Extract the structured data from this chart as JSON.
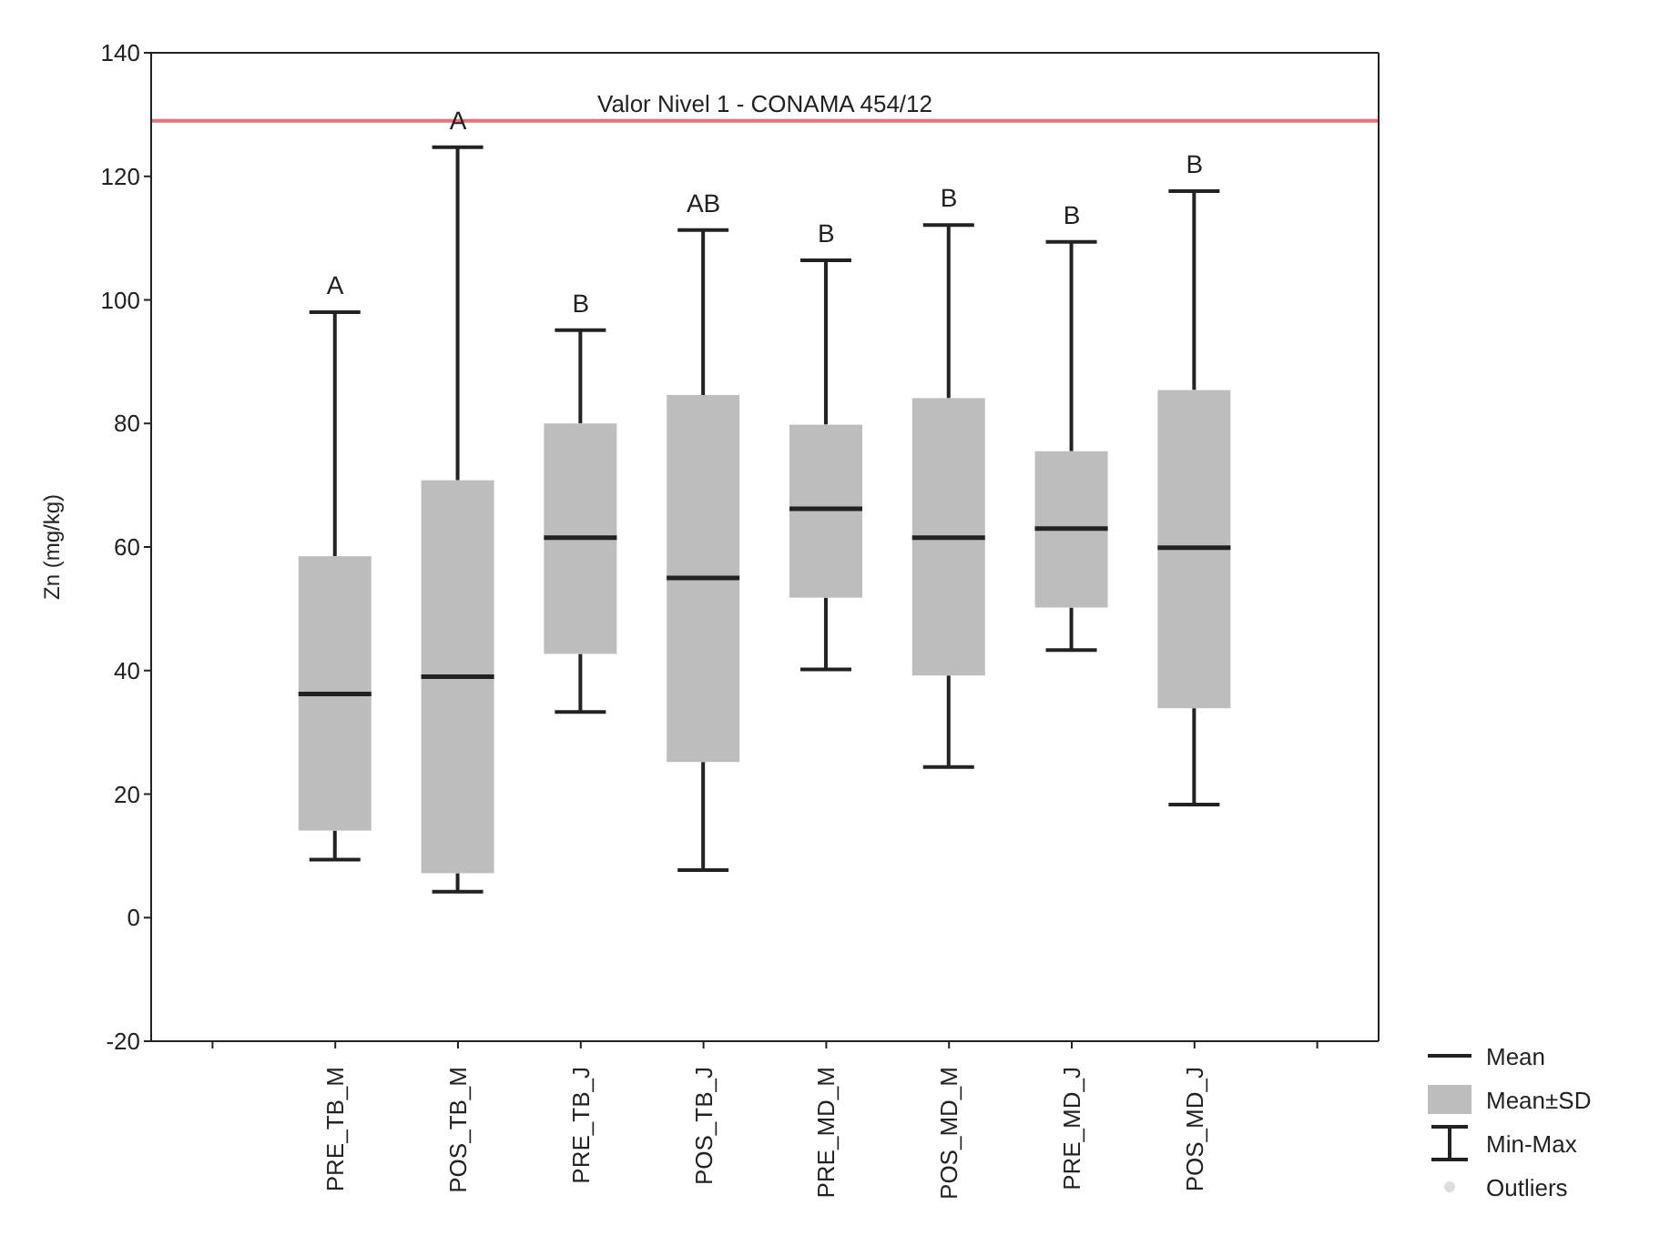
{
  "chart_data": {
    "type": "box",
    "ylabel": "Zn (mg/kg)",
    "categories": [
      null,
      "PRE_TB_M",
      "POS_TB_M",
      "PRE_TB_J",
      "POS_TB_J",
      "PRE_MD_M",
      "POS_MD_M",
      "PRE_MD_J",
      "POS_MD_J",
      null
    ],
    "boxes": [
      null,
      {
        "low": 9.4,
        "q1": 14.1,
        "median": 36.2,
        "q3": 58.5,
        "high": 98
      },
      {
        "low": 4.2,
        "q1": 7.2,
        "median": 39,
        "q3": 70.8,
        "high": 124.7
      },
      {
        "low": 33.3,
        "q1": 42.7,
        "median": 61.5,
        "q3": 80,
        "high": 95.1
      },
      {
        "low": 7.7,
        "q1": 25.2,
        "median": 55,
        "q3": 84.6,
        "high": 111.3
      },
      {
        "low": 40.2,
        "q1": 51.8,
        "median": 66.2,
        "q3": 79.8,
        "high": 106.4
      },
      {
        "low": 24.4,
        "q1": 39.2,
        "median": 61.5,
        "q3": 84.1,
        "high": 112.1
      },
      {
        "low": 43.3,
        "q1": 50.2,
        "median": 63,
        "q3": 75.5,
        "high": 109.4
      },
      {
        "low": 18.3,
        "q1": 33.9,
        "median": 59.9,
        "q3": 85.4,
        "high": 117.6
      },
      null
    ],
    "color": "#bdbdbd",
    "ylim": [
      -20,
      140
    ],
    "yticks": [
      -20,
      0,
      20,
      40,
      60,
      80,
      100,
      120,
      140
    ],
    "grid": false,
    "ref_lines": [
      {
        "axis": "y",
        "value": 129,
        "label": "Valor Nivel 1 - CONAMA 454/12",
        "color": "#e8707a"
      }
    ],
    "annotations": [
      {
        "text": "A",
        "x": "PRE_TB_M",
        "y": 98
      },
      {
        "text": "A",
        "x": "POS_TB_M",
        "y": 124.7
      },
      {
        "text": "B",
        "x": "PRE_TB_J",
        "y": 95.1
      },
      {
        "text": "AB",
        "x": "POS_TB_J",
        "y": 111.3
      },
      {
        "text": "B",
        "x": "PRE_MD_M",
        "y": 106.4
      },
      {
        "text": "B",
        "x": "POS_MD_M",
        "y": 112.1
      },
      {
        "text": "B",
        "x": "PRE_MD_J",
        "y": 109.4
      },
      {
        "text": "B",
        "x": "POS_MD_J",
        "y": 117.6
      },
      "Mean",
      "Mean±SD",
      "Min-Max",
      "Outliers"
    ]
  }
}
